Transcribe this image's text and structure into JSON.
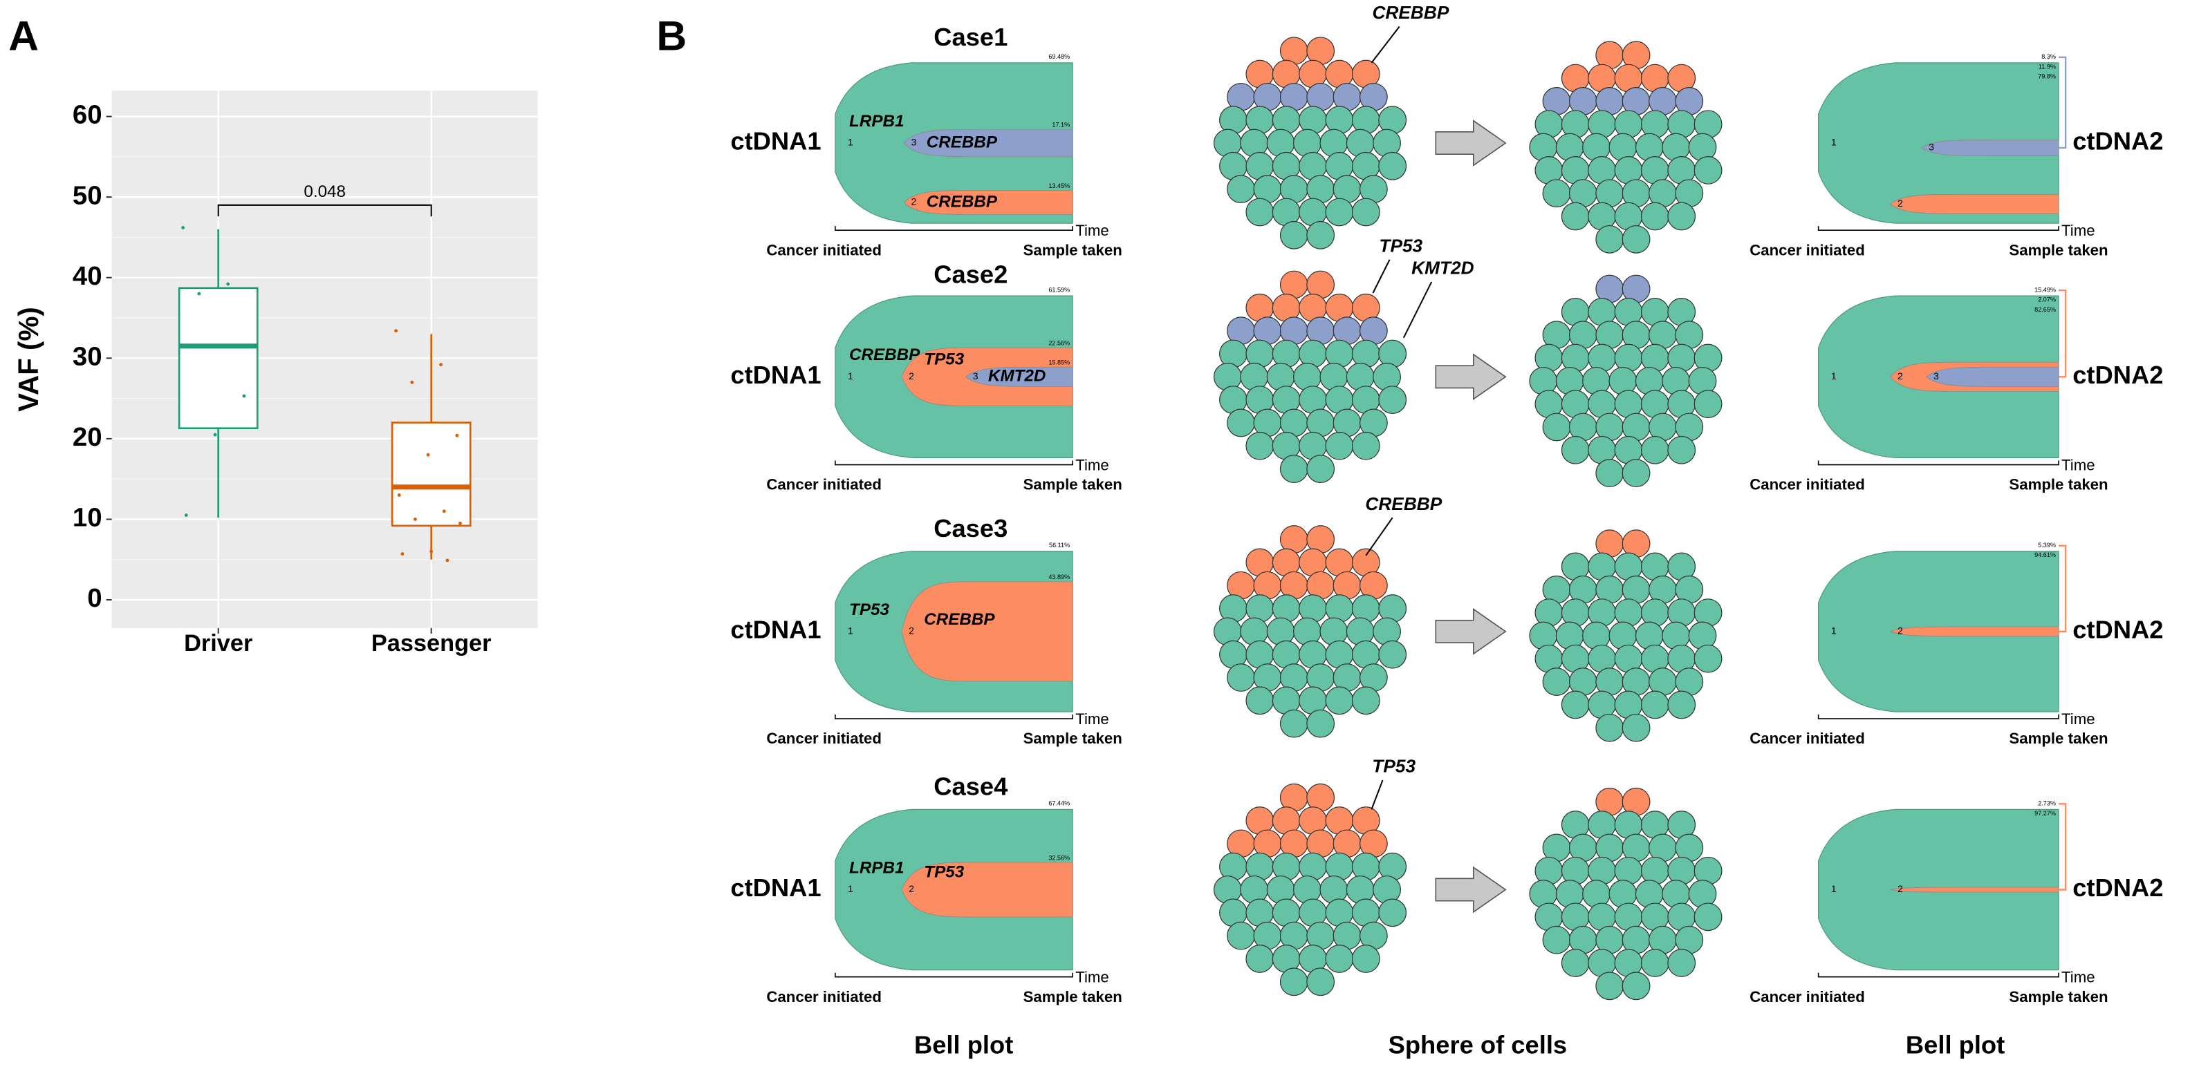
{
  "chart_data": {
    "type": "box",
    "ylabel": "VAF (%)",
    "categories": [
      "Driver",
      "Passenger"
    ],
    "ylim": [
      -3.5,
      63.2
    ],
    "yticks": [
      0,
      10,
      20,
      30,
      40,
      50,
      60
    ],
    "grid": true,
    "annotation": "0.048",
    "boxes": [
      {
        "color": "#1b9e77",
        "min": 10.2,
        "q1": 21.3,
        "median": 31.5,
        "q3": 38.7,
        "max": 46,
        "points": [
          46.2,
          39.2,
          38,
          25.3,
          20.5,
          10.5
        ]
      },
      {
        "color": "#d95f02",
        "min": 5,
        "q1": 9.2,
        "median": 14,
        "q3": 22,
        "max": 33,
        "points": [
          33.4,
          29.2,
          27,
          20.4,
          18,
          13,
          11,
          10,
          9.5,
          6,
          5.7,
          4.9
        ]
      }
    ]
  },
  "panel_a_label": "A",
  "panel_b": {
    "label": "B",
    "axis": {
      "start": "Cancer initiated",
      "end": "Sample taken",
      "time": "Time"
    },
    "captions": [
      "Bell plot",
      "Sphere of cells",
      "Bell plot"
    ],
    "cases": [
      {
        "title": "Case1",
        "left": {
          "sample": "ctDNA1",
          "clones": [
            {
              "id": "1",
              "gene": "LRPB1",
              "freq": "69.48%"
            },
            {
              "id": "3",
              "gene": "CREBBP",
              "freq": "17.1%"
            },
            {
              "id": "2",
              "gene": "CREBBP",
              "freq": "13.45%"
            }
          ]
        },
        "sphere_genes": [
          "CREBBP"
        ],
        "right": {
          "sample": "ctDNA2",
          "clones": [
            {
              "id": "1",
              "freq": "79.8%"
            },
            {
              "id": "3",
              "freq": "8.3%"
            },
            {
              "id": "2",
              "freq": "11.9%"
            }
          ]
        }
      },
      {
        "title": "Case2",
        "left": {
          "sample": "ctDNA1",
          "clones": [
            {
              "id": "1",
              "gene": "CREBBP",
              "freq": "61.59%"
            },
            {
              "id": "2",
              "gene": "TP53",
              "freq": "22.56%"
            },
            {
              "id": "3",
              "gene": "KMT2D",
              "freq": "15.85%"
            }
          ]
        },
        "sphere_genes": [
          "TP53",
          "KMT2D"
        ],
        "right": {
          "sample": "ctDNA2",
          "clones": [
            {
              "id": "1",
              "freq": "82.65%"
            },
            {
              "id": "2",
              "freq": "15.49%"
            },
            {
              "id": "3",
              "freq": "2.07%"
            }
          ]
        }
      },
      {
        "title": "Case3",
        "left": {
          "sample": "ctDNA1",
          "clones": [
            {
              "id": "1",
              "gene": "TP53",
              "freq": "56.11%"
            },
            {
              "id": "2",
              "gene": "CREBBP",
              "freq": "43.89%"
            }
          ]
        },
        "sphere_genes": [
          "CREBBP"
        ],
        "right": {
          "sample": "ctDNA2",
          "clones": [
            {
              "id": "1",
              "freq": "94.61%"
            },
            {
              "id": "2",
              "freq": "5.39%"
            }
          ]
        }
      },
      {
        "title": "Case4",
        "left": {
          "sample": "ctDNA1",
          "clones": [
            {
              "id": "1",
              "gene": "LRPB1",
              "freq": "67.44%"
            },
            {
              "id": "2",
              "gene": "TP53",
              "freq": "32.56%"
            }
          ]
        },
        "sphere_genes": [
          "TP53"
        ],
        "right": {
          "sample": "ctDNA2",
          "clones": [
            {
              "id": "1",
              "freq": "97.27%"
            },
            {
              "id": "2",
              "freq": "2.73%"
            }
          ]
        }
      }
    ]
  }
}
